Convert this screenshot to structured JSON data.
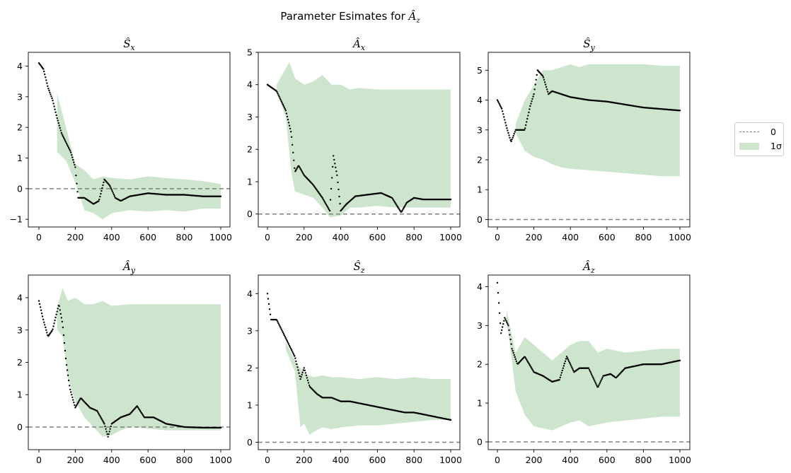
{
  "figure": {
    "suptitle": "Parameter Esimates for Âz",
    "legend": {
      "placement": "right",
      "entries": [
        {
          "label": "0",
          "style": "dashed-line",
          "color": "#808080"
        },
        {
          "label": "1σ",
          "style": "fill",
          "color": "#cde5cd"
        }
      ]
    },
    "colors": {
      "estimate": "#000000",
      "band": "#cde5cd",
      "zero_line": "#808080"
    }
  },
  "chart_data": [
    {
      "type": "scatter",
      "title": "Ŝx",
      "xlim": [
        0,
        1000
      ],
      "ylim": [
        -1.25,
        4.45
      ],
      "xticks": [
        0,
        200,
        400,
        600,
        800,
        1000
      ],
      "yticks": [
        -1,
        0,
        1,
        2,
        3,
        4
      ],
      "zero_line": 0,
      "estimate": [
        [
          0,
          4.1
        ],
        [
          25,
          3.9
        ],
        [
          50,
          3.3
        ],
        [
          75,
          2.9
        ],
        [
          100,
          2.3
        ],
        [
          125,
          1.8
        ],
        [
          150,
          1.5
        ],
        [
          175,
          1.2
        ],
        [
          200,
          0.7
        ],
        [
          215,
          -0.3
        ],
        [
          250,
          -0.3
        ],
        [
          300,
          -0.5
        ],
        [
          330,
          -0.4
        ],
        [
          360,
          0.3
        ],
        [
          390,
          0.1
        ],
        [
          420,
          -0.3
        ],
        [
          450,
          -0.4
        ],
        [
          500,
          -0.25
        ],
        [
          550,
          -0.2
        ],
        [
          600,
          -0.15
        ],
        [
          700,
          -0.2
        ],
        [
          800,
          -0.2
        ],
        [
          900,
          -0.25
        ],
        [
          1000,
          -0.25
        ]
      ],
      "band_upper": [
        [
          100,
          3.1
        ],
        [
          150,
          2.0
        ],
        [
          200,
          0.8
        ],
        [
          250,
          0.6
        ],
        [
          300,
          0.3
        ],
        [
          350,
          0.4
        ],
        [
          400,
          0.35
        ],
        [
          500,
          0.3
        ],
        [
          600,
          0.4
        ],
        [
          700,
          0.35
        ],
        [
          800,
          0.3
        ],
        [
          900,
          0.25
        ],
        [
          1000,
          0.15
        ]
      ],
      "band_lower": [
        [
          100,
          1.2
        ],
        [
          150,
          0.9
        ],
        [
          200,
          0.2
        ],
        [
          250,
          -0.7
        ],
        [
          300,
          -0.8
        ],
        [
          350,
          -1.0
        ],
        [
          400,
          -0.8
        ],
        [
          500,
          -0.7
        ],
        [
          600,
          -0.75
        ],
        [
          700,
          -0.7
        ],
        [
          800,
          -0.75
        ],
        [
          900,
          -0.65
        ],
        [
          1000,
          -0.65
        ]
      ]
    },
    {
      "type": "scatter",
      "title": "Âx",
      "xlim": [
        0,
        1000
      ],
      "ylim": [
        -0.4,
        5.0
      ],
      "xticks": [
        0,
        200,
        400,
        600,
        800,
        1000
      ],
      "yticks": [
        0,
        1,
        2,
        3,
        4,
        5
      ],
      "zero_line": 0,
      "estimate": [
        [
          0,
          4.0
        ],
        [
          50,
          3.8
        ],
        [
          100,
          3.2
        ],
        [
          130,
          2.5
        ],
        [
          150,
          1.3
        ],
        [
          170,
          1.5
        ],
        [
          200,
          1.2
        ],
        [
          250,
          0.9
        ],
        [
          300,
          0.5
        ],
        [
          340,
          0.1
        ],
        [
          360,
          1.8
        ],
        [
          380,
          1.2
        ],
        [
          400,
          0.1
        ],
        [
          430,
          0.3
        ],
        [
          480,
          0.55
        ],
        [
          550,
          0.6
        ],
        [
          620,
          0.65
        ],
        [
          680,
          0.5
        ],
        [
          730,
          0.05
        ],
        [
          760,
          0.35
        ],
        [
          800,
          0.5
        ],
        [
          850,
          0.45
        ],
        [
          1000,
          0.45
        ]
      ],
      "band_upper": [
        [
          50,
          4.0
        ],
        [
          100,
          4.5
        ],
        [
          120,
          4.7
        ],
        [
          150,
          4.2
        ],
        [
          200,
          4.0
        ],
        [
          250,
          4.1
        ],
        [
          300,
          4.3
        ],
        [
          350,
          4.0
        ],
        [
          400,
          4.0
        ],
        [
          450,
          3.85
        ],
        [
          500,
          3.9
        ],
        [
          600,
          3.85
        ],
        [
          700,
          3.85
        ],
        [
          800,
          3.85
        ],
        [
          900,
          3.85
        ],
        [
          1000,
          3.85
        ]
      ],
      "band_lower": [
        [
          50,
          3.8
        ],
        [
          100,
          3.0
        ],
        [
          130,
          1.3
        ],
        [
          150,
          0.7
        ],
        [
          200,
          0.6
        ],
        [
          250,
          0.5
        ],
        [
          300,
          0.2
        ],
        [
          340,
          -0.1
        ],
        [
          400,
          -0.05
        ],
        [
          450,
          0.2
        ],
        [
          500,
          0.2
        ],
        [
          600,
          0.25
        ],
        [
          700,
          0.2
        ],
        [
          800,
          0.2
        ],
        [
          900,
          0.2
        ],
        [
          1000,
          0.2
        ]
      ]
    },
    {
      "type": "scatter",
      "title": "Ŝy",
      "xlim": [
        0,
        1000
      ],
      "ylim": [
        -0.25,
        5.6
      ],
      "xticks": [
        0,
        200,
        400,
        600,
        800,
        1000
      ],
      "yticks": [
        0,
        1,
        2,
        3,
        4,
        5
      ],
      "zero_line": 0,
      "estimate": [
        [
          0,
          4.0
        ],
        [
          25,
          3.7
        ],
        [
          50,
          3.1
        ],
        [
          75,
          2.6
        ],
        [
          100,
          3.0
        ],
        [
          150,
          3.0
        ],
        [
          180,
          3.8
        ],
        [
          200,
          4.2
        ],
        [
          220,
          5.0
        ],
        [
          250,
          4.8
        ],
        [
          280,
          4.2
        ],
        [
          300,
          4.3
        ],
        [
          400,
          4.1
        ],
        [
          500,
          4.0
        ],
        [
          600,
          3.95
        ],
        [
          700,
          3.85
        ],
        [
          800,
          3.75
        ],
        [
          900,
          3.7
        ],
        [
          1000,
          3.65
        ]
      ],
      "band_upper": [
        [
          100,
          3.2
        ],
        [
          150,
          4.0
        ],
        [
          200,
          4.5
        ],
        [
          250,
          5.0
        ],
        [
          300,
          5.0
        ],
        [
          350,
          5.1
        ],
        [
          400,
          5.2
        ],
        [
          450,
          5.1
        ],
        [
          500,
          5.2
        ],
        [
          600,
          5.2
        ],
        [
          700,
          5.2
        ],
        [
          800,
          5.2
        ],
        [
          900,
          5.15
        ],
        [
          1000,
          5.15
        ]
      ],
      "band_lower": [
        [
          100,
          2.9
        ],
        [
          150,
          2.3
        ],
        [
          200,
          2.1
        ],
        [
          250,
          2.0
        ],
        [
          300,
          1.85
        ],
        [
          350,
          1.75
        ],
        [
          400,
          1.7
        ],
        [
          500,
          1.65
        ],
        [
          600,
          1.6
        ],
        [
          700,
          1.55
        ],
        [
          800,
          1.5
        ],
        [
          900,
          1.45
        ],
        [
          1000,
          1.45
        ]
      ]
    },
    {
      "type": "scatter",
      "title": "Ây",
      "xlim": [
        0,
        1000
      ],
      "ylim": [
        -0.7,
        4.7
      ],
      "xticks": [
        0,
        200,
        400,
        600,
        800,
        1000
      ],
      "yticks": [
        0,
        1,
        2,
        3,
        4
      ],
      "zero_line": 0,
      "estimate": [
        [
          0,
          3.9
        ],
        [
          25,
          3.3
        ],
        [
          50,
          2.8
        ],
        [
          75,
          3.0
        ],
        [
          110,
          3.8
        ],
        [
          130,
          3.2
        ],
        [
          150,
          2.0
        ],
        [
          170,
          1.2
        ],
        [
          200,
          0.6
        ],
        [
          230,
          0.9
        ],
        [
          280,
          0.6
        ],
        [
          320,
          0.5
        ],
        [
          360,
          0.1
        ],
        [
          380,
          -0.3
        ],
        [
          400,
          0.1
        ],
        [
          450,
          0.3
        ],
        [
          500,
          0.4
        ],
        [
          540,
          0.65
        ],
        [
          580,
          0.3
        ],
        [
          630,
          0.3
        ],
        [
          700,
          0.1
        ],
        [
          800,
          0.0
        ],
        [
          900,
          -0.02
        ],
        [
          1000,
          -0.02
        ]
      ],
      "band_upper": [
        [
          100,
          3.7
        ],
        [
          130,
          4.3
        ],
        [
          160,
          3.9
        ],
        [
          200,
          4.0
        ],
        [
          250,
          3.8
        ],
        [
          300,
          3.8
        ],
        [
          350,
          3.9
        ],
        [
          400,
          3.75
        ],
        [
          500,
          3.8
        ],
        [
          600,
          3.8
        ],
        [
          700,
          3.8
        ],
        [
          800,
          3.8
        ],
        [
          900,
          3.8
        ],
        [
          1000,
          3.8
        ]
      ],
      "band_lower": [
        [
          100,
          3.0
        ],
        [
          130,
          2.8
        ],
        [
          160,
          1.5
        ],
        [
          200,
          0.8
        ],
        [
          250,
          0.3
        ],
        [
          300,
          0.0
        ],
        [
          350,
          -0.3
        ],
        [
          400,
          -0.25
        ],
        [
          450,
          -0.1
        ],
        [
          500,
          0.0
        ],
        [
          600,
          -0.05
        ],
        [
          700,
          -0.1
        ],
        [
          800,
          -0.1
        ],
        [
          900,
          -0.1
        ],
        [
          1000,
          -0.1
        ]
      ]
    },
    {
      "type": "scatter",
      "title": "Ŝz",
      "xlim": [
        0,
        1000
      ],
      "ylim": [
        -0.2,
        4.5
      ],
      "xticks": [
        0,
        200,
        400,
        600,
        800,
        1000
      ],
      "yticks": [
        0,
        1,
        2,
        3,
        4
      ],
      "zero_line": 0,
      "estimate": [
        [
          0,
          4.0
        ],
        [
          20,
          3.3
        ],
        [
          50,
          3.3
        ],
        [
          80,
          3.0
        ],
        [
          110,
          2.7
        ],
        [
          150,
          2.3
        ],
        [
          180,
          1.7
        ],
        [
          200,
          2.0
        ],
        [
          230,
          1.5
        ],
        [
          270,
          1.3
        ],
        [
          300,
          1.2
        ],
        [
          350,
          1.2
        ],
        [
          400,
          1.1
        ],
        [
          450,
          1.1
        ],
        [
          500,
          1.05
        ],
        [
          550,
          1.0
        ],
        [
          600,
          0.95
        ],
        [
          650,
          0.9
        ],
        [
          700,
          0.85
        ],
        [
          750,
          0.8
        ],
        [
          800,
          0.8
        ],
        [
          850,
          0.75
        ],
        [
          900,
          0.7
        ],
        [
          950,
          0.65
        ],
        [
          1000,
          0.6
        ]
      ],
      "band_upper": [
        [
          100,
          2.7
        ],
        [
          150,
          2.2
        ],
        [
          200,
          1.85
        ],
        [
          250,
          1.75
        ],
        [
          300,
          1.8
        ],
        [
          350,
          1.75
        ],
        [
          400,
          1.75
        ],
        [
          500,
          1.7
        ],
        [
          600,
          1.75
        ],
        [
          700,
          1.7
        ],
        [
          800,
          1.75
        ],
        [
          900,
          1.7
        ],
        [
          1000,
          1.7
        ]
      ],
      "band_lower": [
        [
          100,
          2.5
        ],
        [
          150,
          1.9
        ],
        [
          180,
          0.4
        ],
        [
          200,
          0.5
        ],
        [
          230,
          0.2
        ],
        [
          260,
          0.3
        ],
        [
          300,
          0.4
        ],
        [
          350,
          0.35
        ],
        [
          400,
          0.4
        ],
        [
          500,
          0.45
        ],
        [
          600,
          0.45
        ],
        [
          700,
          0.5
        ],
        [
          800,
          0.55
        ],
        [
          900,
          0.6
        ],
        [
          1000,
          0.6
        ]
      ]
    },
    {
      "type": "scatter",
      "title": "Âz",
      "xlim": [
        0,
        1000
      ],
      "ylim": [
        -0.2,
        4.3
      ],
      "xticks": [
        0,
        200,
        400,
        600,
        800,
        1000
      ],
      "yticks": [
        0,
        1,
        2,
        3,
        4
      ],
      "zero_line": 0,
      "estimate": [
        [
          0,
          4.1
        ],
        [
          20,
          2.8
        ],
        [
          40,
          3.2
        ],
        [
          60,
          3.0
        ],
        [
          80,
          2.4
        ],
        [
          110,
          2.0
        ],
        [
          150,
          2.2
        ],
        [
          200,
          1.8
        ],
        [
          250,
          1.7
        ],
        [
          300,
          1.55
        ],
        [
          340,
          1.6
        ],
        [
          380,
          2.2
        ],
        [
          420,
          1.8
        ],
        [
          450,
          1.9
        ],
        [
          500,
          1.9
        ],
        [
          550,
          1.4
        ],
        [
          580,
          1.7
        ],
        [
          620,
          1.75
        ],
        [
          650,
          1.65
        ],
        [
          700,
          1.9
        ],
        [
          750,
          1.95
        ],
        [
          800,
          2.0
        ],
        [
          850,
          2.0
        ],
        [
          900,
          2.0
        ],
        [
          950,
          2.05
        ],
        [
          1000,
          2.1
        ]
      ],
      "band_upper": [
        [
          50,
          3.4
        ],
        [
          100,
          2.3
        ],
        [
          150,
          2.7
        ],
        [
          200,
          2.5
        ],
        [
          250,
          2.3
        ],
        [
          300,
          2.1
        ],
        [
          350,
          2.3
        ],
        [
          400,
          2.5
        ],
        [
          450,
          2.6
        ],
        [
          500,
          2.6
        ],
        [
          550,
          2.3
        ],
        [
          600,
          2.4
        ],
        [
          700,
          2.3
        ],
        [
          800,
          2.35
        ],
        [
          900,
          2.4
        ],
        [
          1000,
          2.4
        ]
      ],
      "band_lower": [
        [
          50,
          3.2
        ],
        [
          100,
          1.3
        ],
        [
          150,
          0.7
        ],
        [
          200,
          0.4
        ],
        [
          250,
          0.35
        ],
        [
          300,
          0.3
        ],
        [
          350,
          0.4
        ],
        [
          400,
          0.5
        ],
        [
          450,
          0.55
        ],
        [
          500,
          0.4
        ],
        [
          550,
          0.45
        ],
        [
          600,
          0.5
        ],
        [
          700,
          0.55
        ],
        [
          800,
          0.6
        ],
        [
          900,
          0.65
        ],
        [
          1000,
          0.65
        ]
      ]
    }
  ]
}
